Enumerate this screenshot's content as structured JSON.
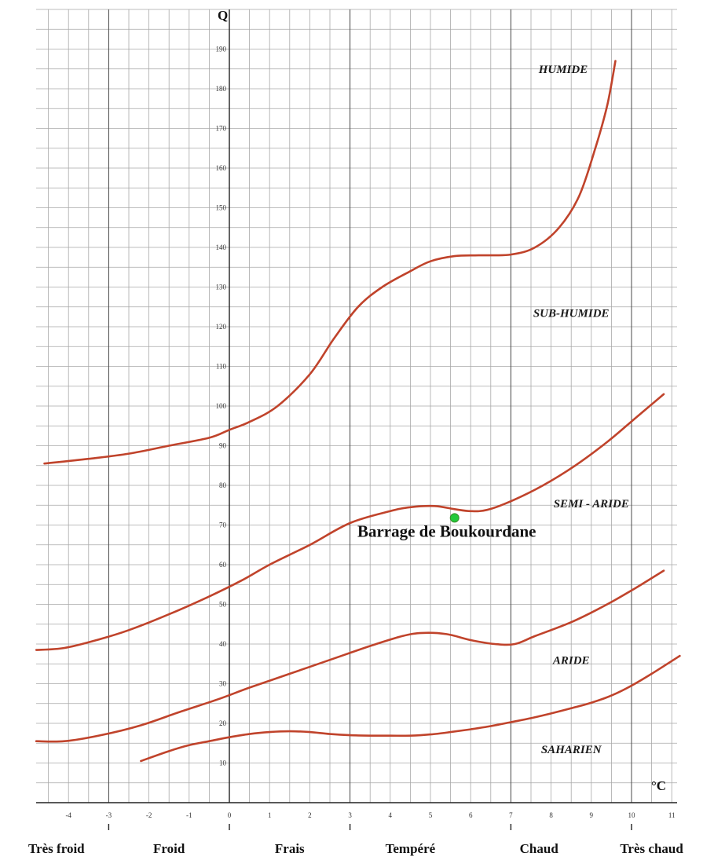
{
  "chart_data": {
    "type": "line",
    "title": "",
    "xlabel": "°C",
    "ylabel": "Q",
    "xlim": [
      -4.8,
      11.2
    ],
    "ylim": [
      0,
      200
    ],
    "x_ticks": [
      "-4",
      "-3",
      "-2",
      "-1",
      "0",
      "1",
      "2",
      "3",
      "4",
      "5",
      "6",
      "7",
      "8",
      "9",
      "10",
      "11"
    ],
    "y_ticks": [
      "10",
      "20",
      "30",
      "40",
      "50",
      "60",
      "70",
      "80",
      "90",
      "100",
      "110",
      "120",
      "130",
      "140",
      "150",
      "160",
      "170",
      "180",
      "190"
    ],
    "grid": true,
    "line_color": "#c0432b",
    "series": [
      {
        "points": [
          [
            -4.6,
            85.5
          ],
          [
            -3.5,
            86.7
          ],
          [
            -2.5,
            88.0
          ],
          [
            -1.5,
            90.0
          ],
          [
            -0.5,
            92.0
          ],
          [
            0.0,
            94.0
          ],
          [
            0.5,
            96.0
          ],
          [
            1.2,
            100.0
          ],
          [
            2.0,
            108.0
          ],
          [
            2.6,
            117.0
          ],
          [
            3.2,
            125.0
          ],
          [
            3.8,
            130.0
          ],
          [
            4.5,
            134.0
          ],
          [
            5.0,
            136.5
          ],
          [
            5.6,
            137.8
          ],
          [
            6.2,
            138.0
          ],
          [
            7.0,
            138.2
          ],
          [
            7.6,
            140.0
          ],
          [
            8.2,
            145.0
          ],
          [
            8.7,
            153.0
          ],
          [
            9.1,
            165.0
          ],
          [
            9.4,
            176.0
          ],
          [
            9.6,
            187.0
          ]
        ]
      },
      {
        "points": [
          [
            -4.8,
            38.5
          ],
          [
            -4.1,
            39.0
          ],
          [
            -3.3,
            41.0
          ],
          [
            -2.5,
            43.5
          ],
          [
            -1.5,
            47.5
          ],
          [
            -0.5,
            52.0
          ],
          [
            0.3,
            56.0
          ],
          [
            1.0,
            60.0
          ],
          [
            2.0,
            65.0
          ],
          [
            3.0,
            70.5
          ],
          [
            4.0,
            73.5
          ],
          [
            4.5,
            74.5
          ],
          [
            5.1,
            74.8
          ],
          [
            5.6,
            74.0
          ],
          [
            6.0,
            73.5
          ],
          [
            6.4,
            73.8
          ],
          [
            7.0,
            76.0
          ],
          [
            7.8,
            80.0
          ],
          [
            8.6,
            85.0
          ],
          [
            9.4,
            91.0
          ],
          [
            10.1,
            97.0
          ],
          [
            10.8,
            103.0
          ]
        ]
      },
      {
        "points": [
          [
            -4.8,
            15.5
          ],
          [
            -4.1,
            15.5
          ],
          [
            -3.2,
            17.0
          ],
          [
            -2.2,
            19.5
          ],
          [
            -1.2,
            23.0
          ],
          [
            -0.3,
            26.0
          ],
          [
            0.5,
            29.0
          ],
          [
            1.5,
            32.5
          ],
          [
            2.5,
            36.0
          ],
          [
            3.5,
            39.5
          ],
          [
            4.3,
            42.0
          ],
          [
            4.8,
            42.8
          ],
          [
            5.4,
            42.5
          ],
          [
            6.0,
            41.0
          ],
          [
            6.6,
            40.0
          ],
          [
            7.1,
            40.0
          ],
          [
            7.6,
            42.0
          ],
          [
            8.5,
            45.5
          ],
          [
            9.3,
            49.5
          ],
          [
            10.0,
            53.5
          ],
          [
            10.8,
            58.5
          ]
        ]
      },
      {
        "points": [
          [
            -2.2,
            10.5
          ],
          [
            -1.5,
            13.0
          ],
          [
            -1.0,
            14.5
          ],
          [
            -0.5,
            15.5
          ],
          [
            0.0,
            16.5
          ],
          [
            0.5,
            17.3
          ],
          [
            1.0,
            17.8
          ],
          [
            1.5,
            18.0
          ],
          [
            2.0,
            17.8
          ],
          [
            2.5,
            17.3
          ],
          [
            3.0,
            17.0
          ],
          [
            3.5,
            16.9
          ],
          [
            4.0,
            16.9
          ],
          [
            4.5,
            16.9
          ],
          [
            5.0,
            17.2
          ],
          [
            5.5,
            17.8
          ],
          [
            6.0,
            18.5
          ],
          [
            6.5,
            19.3
          ],
          [
            7.0,
            20.3
          ],
          [
            7.5,
            21.3
          ],
          [
            8.0,
            22.5
          ],
          [
            8.5,
            23.8
          ],
          [
            9.0,
            25.2
          ],
          [
            9.5,
            27.0
          ],
          [
            10.0,
            29.5
          ],
          [
            10.5,
            32.5
          ],
          [
            11.2,
            37.0
          ]
        ]
      }
    ],
    "zones": [
      {
        "label": "HUMIDE",
        "x": 8.3,
        "y": 184
      },
      {
        "label": "SUB-HUMIDE",
        "x": 8.5,
        "y": 122.5
      },
      {
        "label": "SEMI - ARIDE",
        "x": 9.0,
        "y": 74.5
      },
      {
        "label": "ARIDE",
        "x": 8.5,
        "y": 35
      },
      {
        "label": "SAHARIEN",
        "x": 8.5,
        "y": 12.5
      }
    ],
    "temperature_classes": [
      {
        "label": "Très froid",
        "x": -4.3
      },
      {
        "label": "Froid",
        "x": -1.5
      },
      {
        "label": "Frais",
        "x": 1.5
      },
      {
        "label": "Tempéré",
        "x": 4.5
      },
      {
        "label": "Chaud",
        "x": 7.7
      },
      {
        "label": "Très chaud",
        "x": 10.5
      }
    ],
    "class_separators": [
      -3,
      0,
      3,
      7,
      10
    ],
    "annotations": [
      {
        "label": "Barrage de Boukourdane",
        "x": 5.6,
        "y": 71.8,
        "color": "#22c93a"
      }
    ]
  }
}
